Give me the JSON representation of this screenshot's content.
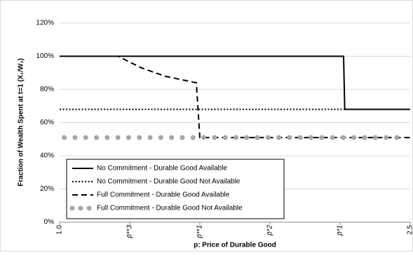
{
  "chart_data": {
    "type": "line",
    "ylabel": "Fraction of Wealth Spent at t=1 (X₁/W₁)",
    "xlabel": "p: Price of Durable Good",
    "xlim": [
      1.0,
      2.5
    ],
    "xticks": [
      {
        "value": 1.0,
        "label": "1.0"
      },
      {
        "value": 1.3,
        "label": "p̄**3"
      },
      {
        "value": 1.6,
        "label": "p̄**1"
      },
      {
        "value": 1.9,
        "label": "p̄*2"
      },
      {
        "value": 2.2,
        "label": "p̄*1"
      },
      2.5
    ],
    "ylim": [
      0,
      120
    ],
    "yticks": [
      {
        "value": 0,
        "label": "0%"
      },
      {
        "value": 20,
        "label": "20%"
      },
      {
        "value": 40,
        "label": "40%"
      },
      {
        "value": 60,
        "label": "60%"
      },
      {
        "value": 80,
        "label": "80%"
      },
      {
        "value": 100,
        "label": "100%"
      },
      {
        "value": 120,
        "label": "120%"
      }
    ],
    "grid": true,
    "legend": "lower left",
    "series": [
      {
        "name": "No Commitment - Durable Good Available",
        "color": "#000000",
        "style": "solid",
        "x": [
          1.0,
          2.215,
          2.22,
          2.5
        ],
        "values": [
          100,
          100,
          68,
          68
        ]
      },
      {
        "name": "No Commitment - Durable Good Not Available",
        "color": "#000000",
        "style": "dotted",
        "x": [
          1.0,
          2.5
        ],
        "values": [
          68,
          68
        ]
      },
      {
        "name": "Full Commitment - Durable Good Available",
        "color": "#000000",
        "style": "dashed",
        "x": [
          1.0,
          1.25,
          1.35,
          1.45,
          1.585,
          1.6,
          2.5
        ],
        "values": [
          100,
          100,
          93,
          88,
          84,
          51,
          51
        ]
      },
      {
        "name": "Full Commitment - Durable Good Not Available",
        "color": "#a6a6a6",
        "style": "dots",
        "x": [
          1.02,
          2.48
        ],
        "values": [
          51,
          51
        ]
      }
    ]
  }
}
